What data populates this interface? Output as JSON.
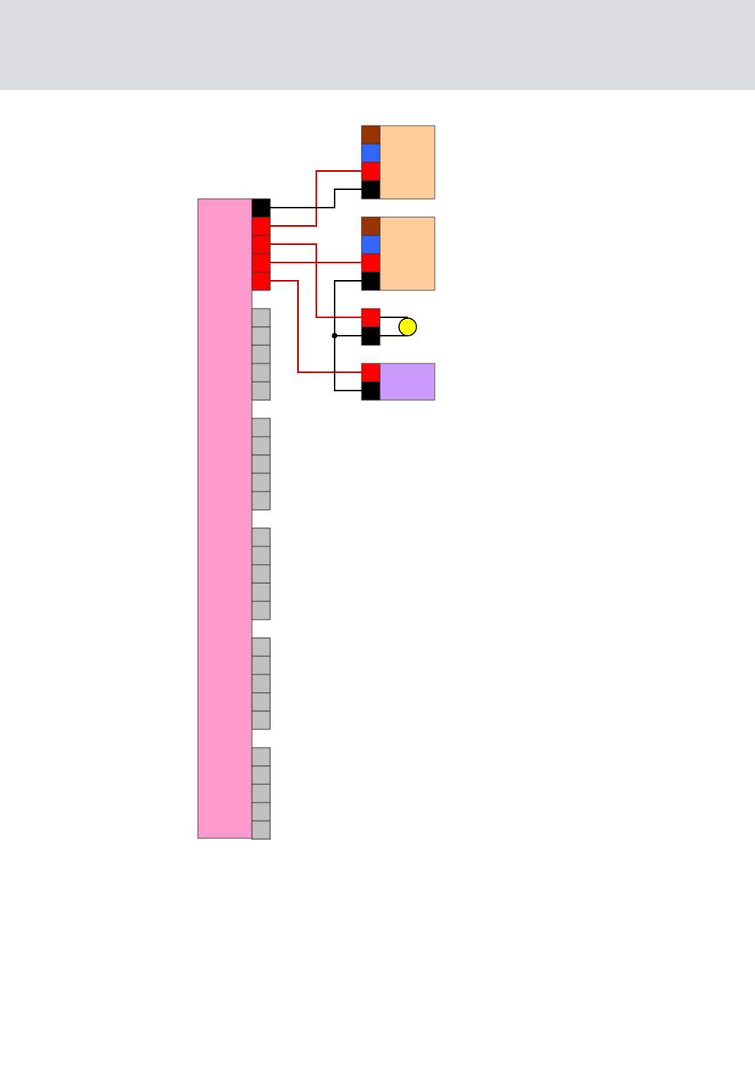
{
  "colors": {
    "header_bar": "#dcdde0",
    "controller_body": "#ff99cc",
    "pin_ground": "#000000",
    "pin_power": "#ff0000",
    "pin_unused": "#c0c0c0",
    "pin_brown": "#993300",
    "pin_blue": "#3366ff",
    "module_body": "#ffcc99",
    "lamp": "#ffff00",
    "device_body": "#cc99ff",
    "wire_red": "#dd0000",
    "wire_black": "#000000"
  },
  "controller": {
    "name": "controller-block",
    "active_pins": [
      "ground",
      "power",
      "power",
      "power",
      "power"
    ],
    "unused_pin_groups": 5,
    "unused_pins_per_group": 5
  },
  "components": [
    {
      "name": "module-1",
      "kind": "module",
      "pins": [
        "brown",
        "blue",
        "power",
        "ground"
      ]
    },
    {
      "name": "module-2",
      "kind": "module",
      "pins": [
        "brown",
        "blue",
        "power",
        "ground"
      ]
    },
    {
      "name": "lamp-unit",
      "kind": "lamp",
      "pins": [
        "power",
        "ground"
      ]
    },
    {
      "name": "device-unit",
      "kind": "device",
      "pins": [
        "power",
        "ground"
      ]
    }
  ]
}
